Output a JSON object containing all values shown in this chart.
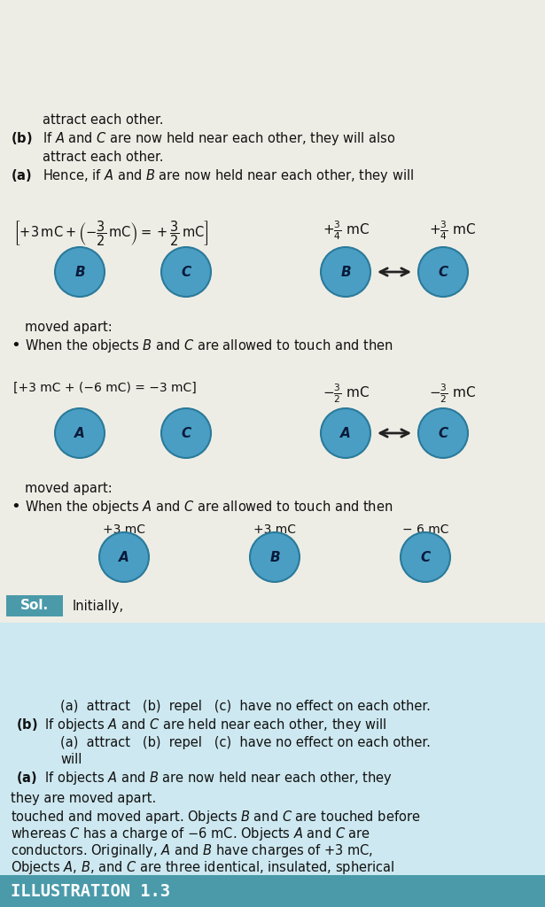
{
  "page_bg": "#eeede5",
  "header_bg": "#4a9aaa",
  "sol_bg": "#4a9aaa",
  "body_text_color": "#111111",
  "sphere_fill_dark": "#4a9ec4",
  "sphere_fill_light": "#7dc4da",
  "sphere_edge": "#2a7a9a",
  "header_text": "ILLUSTRATION 1.3",
  "paragraph_lines": [
    "Objects $A$, $B$, and $C$ are three identical, insulated, spherical",
    "conductors. Originally, $A$ and $B$ have charges of +3 mC,",
    "whereas $C$ has a charge of −6 mC. Objects $A$ and $C$ are",
    "touched and moved apart. Objects $B$ and $C$ are touched before",
    "they are moved apart."
  ],
  "qa_lines": [
    [
      "    (a)",
      " If objects $A$ and $B$ are now held near each other, they",
      true
    ],
    [
      "        ",
      "will",
      false
    ],
    [
      "        ",
      "(a)  attract   (b)  repel   (c)  have no effect on each other.",
      false
    ],
    [
      "    (b)",
      " If objects $A$ and $C$ are held near each other, they will",
      true
    ],
    [
      "        ",
      "(a)  attract   (b)  repel   (c)  have no effect on each other.",
      false
    ]
  ],
  "sol_label": "Sol.",
  "initially_text": "Initially,",
  "initial_spheres": [
    {
      "label": "A",
      "charge": "+3 mC"
    },
    {
      "label": "B",
      "charge": "+3 mC"
    },
    {
      "label": "C",
      "charge": "− 6 mC"
    }
  ],
  "bullet1_lines": [
    "When the objects $A$ and $C$ are allowed to touch and then",
    "moved apart:"
  ],
  "ac_left": [
    "A",
    "C"
  ],
  "ac_right": [
    "A",
    "C"
  ],
  "ac_formula": "[+3 mC + (−6 mC) = −3 mC]",
  "ac_charge_A": "$-\\frac{3}{2}$ mC",
  "ac_charge_C": "$-\\frac{3}{2}$ mC",
  "bullet2_lines": [
    "When the objects $B$ and $C$ are allowed to touch and then",
    "moved apart:"
  ],
  "bc_left": [
    "B",
    "C"
  ],
  "bc_right": [
    "B",
    "C"
  ],
  "bc_formula": "$\\left[+3\\,\\mathrm{mC}+\\left(-\\dfrac{3}{2}\\,\\mathrm{mC}\\right)=+\\dfrac{3}{2}\\,\\mathrm{mC}\\right]$",
  "bc_charge_B": "$+\\frac{3}{4}$ mC",
  "bc_charge_C": "$+\\frac{3}{4}$ mC",
  "conclusion_lines": [
    [
      "(a) ",
      "Hence, if $A$ and $B$ are now held near each other, they will"
    ],
    [
      "    ",
      "attract each other."
    ],
    [
      "(b) ",
      "If $A$ and $C$ are now held near each other, they will also"
    ],
    [
      "    ",
      "attract each other."
    ]
  ]
}
